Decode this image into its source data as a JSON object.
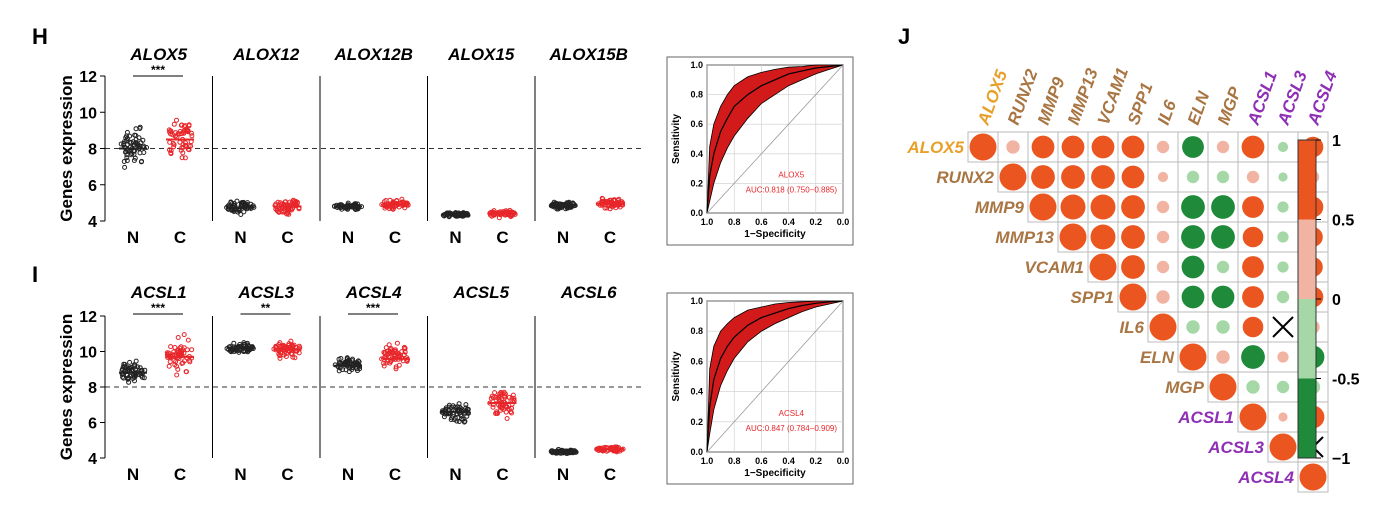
{
  "panels": {
    "H": "H",
    "I": "I",
    "J": "J"
  },
  "colors": {
    "normal": "#222222",
    "cancer": "#e8262a",
    "roc_fill": "#d21a1a",
    "orange": "#e8a02a",
    "brown": "#a87543",
    "purple": "#8e2fb5",
    "pos": "#ea5520",
    "pos_light": "#f2b4a2",
    "neg": "#1e8a3a",
    "neg_light": "#a5d8a6"
  },
  "scatter_common": {
    "ylabel": "Genes expression",
    "yticks": [
      4,
      6,
      8,
      10,
      12
    ],
    "ylim": [
      4,
      12
    ],
    "categories": [
      "N",
      "C"
    ],
    "threshold": 8
  },
  "chart_data": [
    {
      "type": "scatter",
      "panel": "H",
      "genes": [
        {
          "name": "ALOX5",
          "sig": "***",
          "N": {
            "median": 8.0,
            "min": 6.8,
            "max": 9.5
          },
          "C": {
            "median": 8.5,
            "min": 7.4,
            "max": 9.8
          }
        },
        {
          "name": "ALOX12",
          "sig": "",
          "N": {
            "median": 4.75,
            "min": 4.3,
            "max": 5.3
          },
          "C": {
            "median": 4.8,
            "min": 4.3,
            "max": 5.3
          }
        },
        {
          "name": "ALOX12B",
          "sig": "",
          "N": {
            "median": 4.8,
            "min": 4.55,
            "max": 5.05
          },
          "C": {
            "median": 4.9,
            "min": 4.6,
            "max": 5.3
          }
        },
        {
          "name": "ALOX15",
          "sig": "",
          "N": {
            "median": 4.35,
            "min": 4.15,
            "max": 4.55
          },
          "C": {
            "median": 4.4,
            "min": 4.15,
            "max": 4.7
          }
        },
        {
          "name": "ALOX15B",
          "sig": "",
          "N": {
            "median": 4.85,
            "min": 4.6,
            "max": 5.15
          },
          "C": {
            "median": 4.95,
            "min": 4.6,
            "max": 5.4
          }
        }
      ]
    },
    {
      "type": "scatter",
      "panel": "I",
      "genes": [
        {
          "name": "ACSL1",
          "sig": "***",
          "N": {
            "median": 8.8,
            "min": 8.1,
            "max": 9.7
          },
          "C": {
            "median": 9.7,
            "min": 8.4,
            "max": 11.1
          }
        },
        {
          "name": "ACSL3",
          "sig": "**",
          "N": {
            "median": 10.2,
            "min": 9.8,
            "max": 10.6
          },
          "C": {
            "median": 10.1,
            "min": 9.5,
            "max": 10.8
          }
        },
        {
          "name": "ACSL4",
          "sig": "***",
          "N": {
            "median": 9.2,
            "min": 8.8,
            "max": 9.9
          },
          "C": {
            "median": 9.6,
            "min": 8.9,
            "max": 11.0
          }
        },
        {
          "name": "ACSL5",
          "sig": "",
          "N": {
            "median": 6.6,
            "min": 5.8,
            "max": 7.4
          },
          "C": {
            "median": 7.1,
            "min": 6.0,
            "max": 8.3
          }
        },
        {
          "name": "ACSL6",
          "sig": "",
          "N": {
            "median": 4.35,
            "min": 4.2,
            "max": 4.5
          },
          "C": {
            "median": 4.5,
            "min": 4.3,
            "max": 4.7
          }
        }
      ]
    },
    {
      "type": "line",
      "panel": "H-roc",
      "title": "ALOX5",
      "auc_text": "AUC:0.818 (0.750−0.885)",
      "xlabel": "1−Specificity",
      "ylabel": "Sensitivity",
      "x_ticks": [
        "1.0",
        "0.8",
        "0.6",
        "0.4",
        "0.2",
        "0.0"
      ],
      "y_ticks": [
        "0.0",
        "0.2",
        "0.4",
        "0.6",
        "0.8",
        "1.0"
      ],
      "x": [
        0.0,
        0.02,
        0.05,
        0.1,
        0.15,
        0.2,
        0.3,
        0.4,
        0.5,
        0.6,
        0.7,
        0.8,
        0.9,
        1.0
      ],
      "y": [
        0.0,
        0.25,
        0.4,
        0.55,
        0.64,
        0.72,
        0.8,
        0.86,
        0.9,
        0.94,
        0.96,
        0.98,
        0.99,
        1.0
      ],
      "lower": [
        0.0,
        0.08,
        0.2,
        0.34,
        0.44,
        0.52,
        0.64,
        0.74,
        0.8,
        0.86,
        0.9,
        0.94,
        0.97,
        1.0
      ],
      "upper": [
        0.0,
        0.45,
        0.6,
        0.72,
        0.8,
        0.86,
        0.92,
        0.95,
        0.97,
        0.985,
        0.99,
        1.0,
        1.0,
        1.0
      ]
    },
    {
      "type": "line",
      "panel": "I-roc",
      "title": "ACSL4",
      "auc_text": "AUC:0.847 (0.784−0.909)",
      "xlabel": "1−Specificity",
      "ylabel": "Sensitivity",
      "x_ticks": [
        "1.0",
        "0.8",
        "0.6",
        "0.4",
        "0.2",
        "0.0"
      ],
      "y_ticks": [
        "0.0",
        "0.2",
        "0.4",
        "0.6",
        "0.8",
        "1.0"
      ],
      "x": [
        0.0,
        0.02,
        0.05,
        0.1,
        0.15,
        0.2,
        0.3,
        0.4,
        0.5,
        0.6,
        0.7,
        0.8,
        0.9,
        1.0
      ],
      "y": [
        0.0,
        0.3,
        0.48,
        0.62,
        0.7,
        0.76,
        0.84,
        0.89,
        0.92,
        0.95,
        0.97,
        0.985,
        0.995,
        1.0
      ],
      "lower": [
        0.0,
        0.12,
        0.28,
        0.44,
        0.54,
        0.62,
        0.73,
        0.8,
        0.85,
        0.89,
        0.93,
        0.96,
        0.98,
        1.0
      ],
      "upper": [
        0.0,
        0.55,
        0.7,
        0.8,
        0.85,
        0.89,
        0.94,
        0.96,
        0.98,
        0.99,
        0.995,
        1.0,
        1.0,
        1.0
      ]
    },
    {
      "type": "heatmap",
      "panel": "J",
      "labels": [
        "ALOX5",
        "RUNX2",
        "MMP9",
        "MMP13",
        "VCAM1",
        "SPP1",
        "IL6",
        "ELN",
        "MGP",
        "ACSL1",
        "ACSL3",
        "ACSL4"
      ],
      "label_groups": [
        "orange",
        "brown",
        "brown",
        "brown",
        "brown",
        "brown",
        "brown",
        "brown",
        "brown",
        "purple",
        "purple",
        "purple"
      ],
      "colorbar_ticks": [
        "1",
        "0.5",
        "0",
        "-0.5",
        "−1"
      ],
      "range": [
        -1,
        1
      ],
      "insignificant": [
        [
          6,
          10
        ],
        [
          10,
          11
        ]
      ],
      "rows": [
        [
          1,
          0.35,
          0.8,
          0.8,
          0.8,
          0.8,
          0.3,
          -0.75,
          0.3,
          0.8,
          -0.2,
          0.7
        ],
        [
          0,
          1,
          0.85,
          0.85,
          0.85,
          0.8,
          0.2,
          -0.3,
          -0.3,
          0.3,
          -0.15,
          0.3
        ],
        [
          0,
          0,
          1,
          0.9,
          0.9,
          0.85,
          0.3,
          -0.85,
          -0.85,
          0.75,
          -0.25,
          0.7
        ],
        [
          0,
          0,
          0,
          1,
          0.9,
          0.85,
          0.3,
          -0.85,
          -0.85,
          0.7,
          -0.25,
          0.65
        ],
        [
          0,
          0,
          0,
          0,
          1,
          0.85,
          0.3,
          -0.8,
          -0.3,
          0.75,
          -0.25,
          0.65
        ],
        [
          0,
          0,
          0,
          0,
          0,
          1,
          0.35,
          -0.8,
          -0.8,
          0.75,
          -0.3,
          0.7
        ],
        [
          0,
          0,
          0,
          0,
          0,
          0,
          1,
          -0.35,
          -0.35,
          0.7,
          0,
          0.35
        ],
        [
          0,
          0,
          0,
          0,
          0,
          0,
          0,
          1,
          0.35,
          -0.85,
          0.25,
          -0.8
        ],
        [
          0,
          0,
          0,
          0,
          0,
          0,
          0,
          0,
          1,
          -0.35,
          -0.3,
          -0.4
        ],
        [
          0,
          0,
          0,
          0,
          0,
          0,
          0,
          0,
          0,
          1,
          0.15,
          0.8
        ],
        [
          0,
          0,
          0,
          0,
          0,
          0,
          0,
          0,
          0,
          0,
          1,
          0
        ],
        [
          0,
          0,
          0,
          0,
          0,
          0,
          0,
          0,
          0,
          0,
          0,
          1
        ]
      ]
    }
  ]
}
